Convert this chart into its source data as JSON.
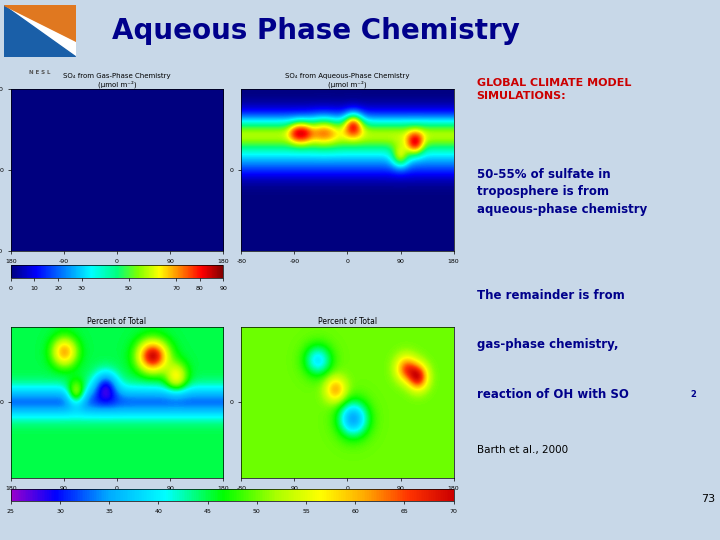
{
  "title": "Aqueous Phase Chemistry",
  "title_color": "#00008B",
  "slide_bg": "#c8d8e8",
  "title_bg": "#d8e4f0",
  "header_text": "GLOBAL CLIMATE MODEL\nSIMULATIONS:",
  "header_color": "#cc0000",
  "bullet1": "50-55% of sulfate in\ntroposphere is from\naqueous-phase chemistry",
  "bullet1_color": "#00008B",
  "bullet2_line1": "The remainder is from",
  "bullet2_line2": "gas-phase chemistry,",
  "bullet2_line3": "reaction of OH with SO",
  "bullet2_sub": "2",
  "bullet2_color": "#00008B",
  "citation": "Barth et al., 2000",
  "citation_color": "#000000",
  "page_number": "73",
  "map_title1a": "SO",
  "map_title1b": "4",
  "map_title1c": " from Gas-Phase Chemistry",
  "map_title1d": "(μmol m⁻²)",
  "map_title2a": "SO",
  "map_title2b": "4",
  "map_title2c": " from Aqueous-Phase Chemistry",
  "map_title2d": "(μmol m⁻²)",
  "map_title3": "Percent of Total",
  "map_title4": "Percent of Total",
  "colorbar1_ticks": [
    0,
    10,
    20,
    30,
    50,
    70,
    80,
    90
  ],
  "colorbar1_labels": [
    "0",
    "10",
    "20",
    "30",
    "50",
    "70",
    "80",
    "90"
  ],
  "colorbar2_ticks": [
    25,
    30,
    35,
    40,
    45,
    50,
    55,
    60,
    65,
    70
  ],
  "colorbar2_labels": [
    "25",
    "30",
    "35",
    "40",
    "45",
    "50",
    "55",
    "60",
    "65",
    "70"
  ],
  "map_bg": "#e8f0f8",
  "logo_blue": "#1a5fa8",
  "logo_orange": "#e07820"
}
